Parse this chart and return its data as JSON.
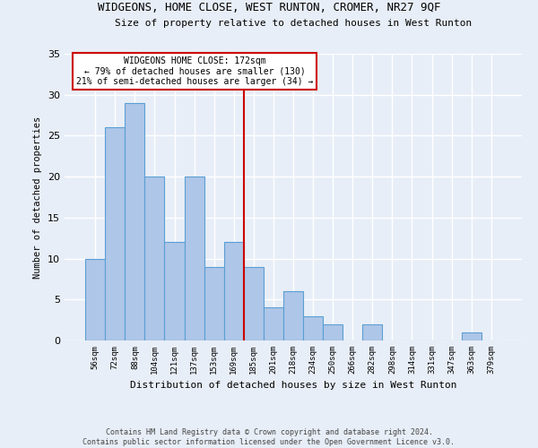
{
  "title": "WIDGEONS, HOME CLOSE, WEST RUNTON, CROMER, NR27 9QF",
  "subtitle": "Size of property relative to detached houses in West Runton",
  "xlabel": "Distribution of detached houses by size in West Runton",
  "ylabel": "Number of detached properties",
  "categories": [
    "56sqm",
    "72sqm",
    "88sqm",
    "104sqm",
    "121sqm",
    "137sqm",
    "153sqm",
    "169sqm",
    "185sqm",
    "201sqm",
    "218sqm",
    "234sqm",
    "250sqm",
    "266sqm",
    "282sqm",
    "298sqm",
    "314sqm",
    "331sqm",
    "347sqm",
    "363sqm",
    "379sqm"
  ],
  "values": [
    10,
    26,
    29,
    20,
    12,
    20,
    9,
    12,
    9,
    4,
    6,
    3,
    2,
    0,
    2,
    0,
    0,
    0,
    0,
    1,
    0
  ],
  "bar_color": "#aec6e8",
  "bar_edge_color": "#5a9fd4",
  "annotation_text_line1": "WIDGEONS HOME CLOSE: 172sqm",
  "annotation_text_line2": "← 79% of detached houses are smaller (130)",
  "annotation_text_line3": "21% of semi-detached houses are larger (34) →",
  "annotation_box_color": "#ffffff",
  "annotation_box_edge_color": "#cc0000",
  "vline_color": "#cc0000",
  "ylim": [
    0,
    35
  ],
  "yticks": [
    0,
    5,
    10,
    15,
    20,
    25,
    30,
    35
  ],
  "background_color": "#e8eef7",
  "grid_color": "#ffffff",
  "footer_line1": "Contains HM Land Registry data © Crown copyright and database right 2024.",
  "footer_line2": "Contains public sector information licensed under the Open Government Licence v3.0."
}
